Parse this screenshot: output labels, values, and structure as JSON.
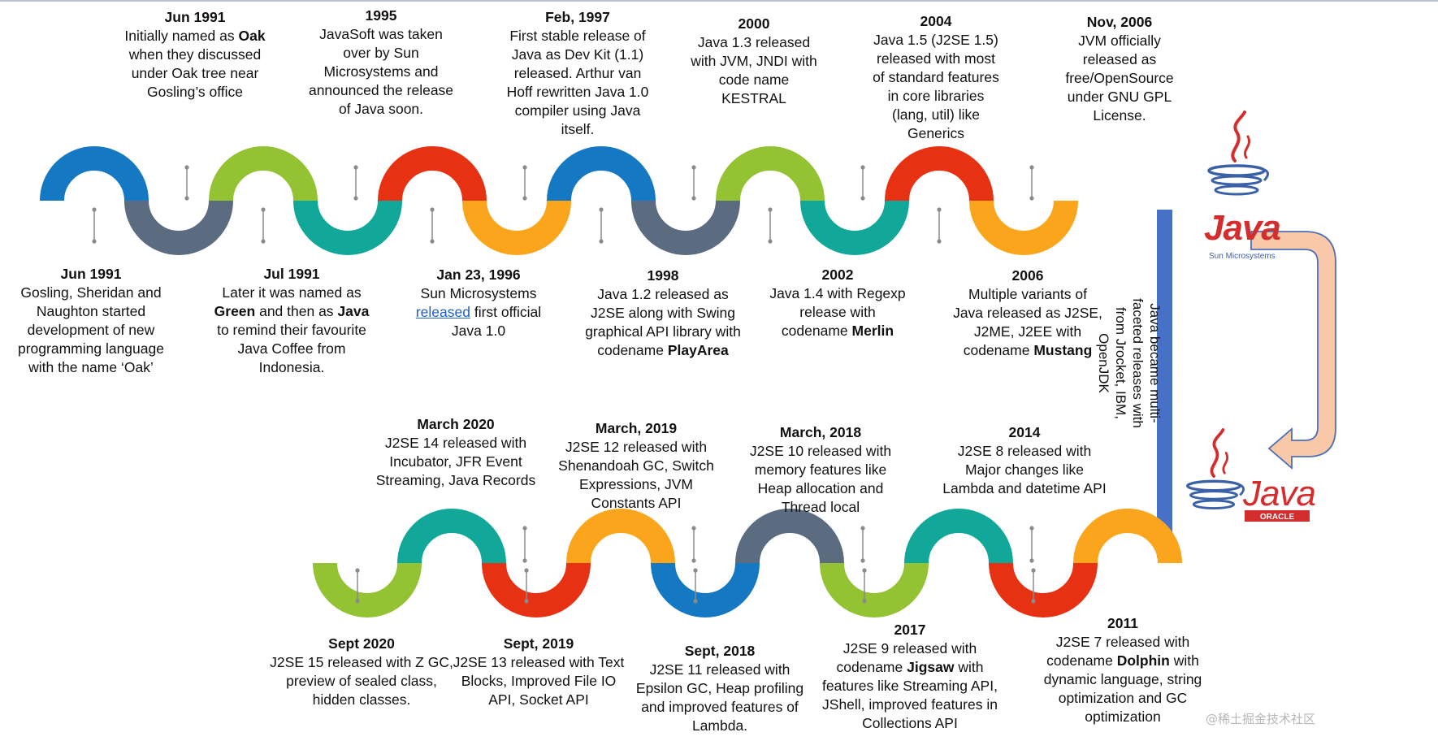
{
  "colors": {
    "blue": "#1479c2",
    "slate": "#5b6c80",
    "green": "#93c232",
    "teal": "#11a89a",
    "red": "#e63112",
    "orange": "#fba51c",
    "connector": "#4671c6",
    "arrow_fill": "#f8c8a8",
    "arrow_stroke": "#4d6fb8",
    "java_red": "#d32d2d",
    "java_blue": "#3a60a8"
  },
  "sun_logo": {
    "word": "Java",
    "sub": "Sun Microsystems"
  },
  "oracle_logo": {
    "word": "Java",
    "sub": "ORACLE"
  },
  "side_note": "Java became multi-faceted releases with from Jrocket, IBM, OpenJDK",
  "watermark": "@稀土掘金技术社区",
  "top_above": [
    {
      "date": "Jun 1991",
      "parts": [
        {
          "t": "Initially  named as "
        },
        {
          "t": "Oak",
          "b": true
        },
        {
          "t": " when  they discussed under Oak tree near Gosling’s office"
        }
      ]
    },
    {
      "date": "1995",
      "parts": [
        {
          "t": "JavaSoft was taken over by Sun Microsystems and announced  the release of Java soon."
        }
      ]
    },
    {
      "date": "Feb, 1997",
      "parts": [
        {
          "t": "First stable release of Java as Dev Kit (1.1) released. Arthur van Hoff rewritten Java 1.0 compiler using Java itself."
        }
      ]
    },
    {
      "date": "2000",
      "parts": [
        {
          "t": "Java 1.3 released with JVM, JNDI with code name KESTRAL"
        }
      ]
    },
    {
      "date": "2004",
      "parts": [
        {
          "t": "Java 1.5 (J2SE 1.5) released with most of standard features in core libraries (lang, util) like Generics"
        }
      ]
    },
    {
      "date": "Nov, 2006",
      "parts": [
        {
          "t": "JVM officially released as free/OpenSource under GNU GPL License."
        }
      ]
    }
  ],
  "top_below": [
    {
      "date": "Jun 1991",
      "parts": [
        {
          "t": "Gosling, Sheridan and Naughton started development  of  new programming language with the name ‘Oak’"
        }
      ]
    },
    {
      "date": "Jul 1991",
      "parts": [
        {
          "t": "Later it was named as "
        },
        {
          "t": "Green",
          "b": true
        },
        {
          "t": " and then as "
        },
        {
          "t": "Java",
          "b": true
        },
        {
          "t": " to remind their favourite Java Coffee from Indonesia."
        }
      ]
    },
    {
      "date": "Jan 23, 1996",
      "parts": [
        {
          "t": "Sun Microsystems "
        },
        {
          "t": "released",
          "link": true
        },
        {
          "t": " first official Java 1.0"
        }
      ]
    },
    {
      "date": "1998",
      "parts": [
        {
          "t": "Java 1.2 released as J2SE along with Swing graphical API library with codename "
        },
        {
          "t": "PlayArea",
          "b": true
        }
      ]
    },
    {
      "date": "2002",
      "parts": [
        {
          "t": "Java 1.4 with Regexp release with codename "
        },
        {
          "t": "Merlin",
          "b": true
        }
      ]
    },
    {
      "date": "2006",
      "parts": [
        {
          "t": "Multiple variants of Java released as J2SE, J2ME, J2EE with codename "
        },
        {
          "t": "Mustang",
          "b": true
        }
      ]
    }
  ],
  "bottom_above": [
    {
      "date": "March 2020",
      "parts": [
        {
          "t": "J2SE 14 released with Incubator, JFR Event Streaming, Java Records"
        }
      ]
    },
    {
      "date": "March, 2019",
      "parts": [
        {
          "t": "J2SE 12 released with Shenandoah GC, Switch Expressions, JVM Constants API"
        }
      ]
    },
    {
      "date": "March, 2018",
      "parts": [
        {
          "t": "J2SE 10 released with memory features like Heap allocation and Thread local"
        }
      ]
    },
    {
      "date": "2014",
      "parts": [
        {
          "t": "J2SE 8 released with Major changes like Lambda and datetime API"
        }
      ]
    }
  ],
  "bottom_below": [
    {
      "date": "Sept 2020",
      "parts": [
        {
          "t": "J2SE 15 released with Z GC, preview of sealed class, hidden classes."
        }
      ]
    },
    {
      "date": "Sept, 2019",
      "parts": [
        {
          "t": "J2SE 13 released with Text Blocks, Improved File IO API, Socket API"
        }
      ]
    },
    {
      "date": "Sept, 2018",
      "parts": [
        {
          "t": "J2SE 11 released with Epsilon GC, Heap profiling and improved features of Lambda."
        }
      ]
    },
    {
      "date": "2017",
      "parts": [
        {
          "t": "J2SE 9 released with codename "
        },
        {
          "t": "Jigsaw",
          "b": true
        },
        {
          "t": " with features like Streaming API, JShell, improved features in Collections API"
        }
      ]
    },
    {
      "date": "2011",
      "parts": [
        {
          "t": "J2SE 7 released with codename "
        },
        {
          "t": "Dolphin",
          "b": true
        },
        {
          "t": " with dynamic language, string optimization and GC optimization"
        }
      ]
    }
  ]
}
